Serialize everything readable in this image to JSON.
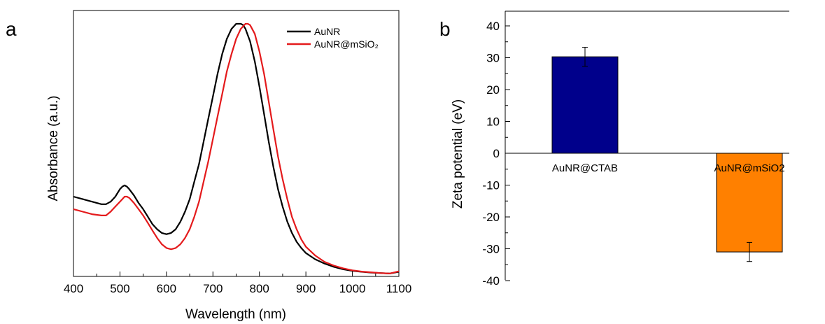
{
  "panels": {
    "a": "a",
    "b": "b"
  },
  "chart_data": [
    {
      "type": "line",
      "xlabel": "Wavelength (nm)",
      "ylabel": "Absorbance (a.u.)",
      "xlim": [
        400,
        1100
      ],
      "ylim": [
        0,
        1.0
      ],
      "xticks": [
        "400",
        "500",
        "600",
        "700",
        "800",
        "900",
        "1000",
        "1100"
      ],
      "legend_position": "top-right",
      "series": [
        {
          "name": "AuNR",
          "color": "#000000",
          "x": [
            400,
            420,
            440,
            460,
            470,
            480,
            490,
            500,
            505,
            510,
            515,
            520,
            530,
            540,
            550,
            560,
            570,
            580,
            590,
            600,
            610,
            620,
            630,
            640,
            650,
            660,
            670,
            680,
            690,
            700,
            710,
            720,
            730,
            740,
            750,
            760,
            765,
            770,
            780,
            790,
            800,
            810,
            820,
            830,
            840,
            850,
            860,
            870,
            880,
            890,
            900,
            920,
            940,
            960,
            980,
            1000,
            1020,
            1040,
            1060,
            1080,
            1100
          ],
          "y": [
            0.31,
            0.3,
            0.29,
            0.28,
            0.28,
            0.29,
            0.31,
            0.34,
            0.35,
            0.355,
            0.35,
            0.34,
            0.315,
            0.285,
            0.26,
            0.23,
            0.2,
            0.18,
            0.165,
            0.16,
            0.165,
            0.18,
            0.21,
            0.25,
            0.3,
            0.37,
            0.44,
            0.53,
            0.62,
            0.71,
            0.8,
            0.88,
            0.94,
            0.98,
            1.0,
            1.0,
            0.995,
            0.98,
            0.93,
            0.85,
            0.75,
            0.64,
            0.53,
            0.43,
            0.34,
            0.27,
            0.21,
            0.165,
            0.13,
            0.105,
            0.085,
            0.06,
            0.043,
            0.03,
            0.02,
            0.014,
            0.01,
            0.007,
            0.005,
            0.003,
            0.01
          ]
        },
        {
          "name": "AuNR@mSiO₂",
          "color": "#e41a1c",
          "x": [
            400,
            420,
            440,
            460,
            470,
            480,
            490,
            500,
            505,
            510,
            515,
            520,
            530,
            540,
            550,
            560,
            570,
            580,
            590,
            600,
            610,
            620,
            630,
            640,
            650,
            660,
            670,
            680,
            690,
            700,
            710,
            720,
            730,
            740,
            750,
            760,
            770,
            775,
            780,
            790,
            800,
            810,
            820,
            830,
            840,
            850,
            860,
            870,
            880,
            890,
            900,
            920,
            940,
            960,
            980,
            1000,
            1020,
            1040,
            1060,
            1080,
            1100
          ],
          "y": [
            0.26,
            0.25,
            0.24,
            0.235,
            0.235,
            0.25,
            0.27,
            0.29,
            0.3,
            0.31,
            0.31,
            0.305,
            0.285,
            0.26,
            0.235,
            0.205,
            0.175,
            0.145,
            0.12,
            0.105,
            0.1,
            0.105,
            0.12,
            0.145,
            0.18,
            0.23,
            0.29,
            0.37,
            0.45,
            0.54,
            0.63,
            0.72,
            0.81,
            0.88,
            0.94,
            0.98,
            1.0,
            1.0,
            0.995,
            0.96,
            0.89,
            0.8,
            0.69,
            0.58,
            0.47,
            0.38,
            0.3,
            0.23,
            0.18,
            0.14,
            0.11,
            0.075,
            0.05,
            0.035,
            0.024,
            0.016,
            0.011,
            0.008,
            0.005,
            0.003,
            0.012
          ]
        }
      ]
    },
    {
      "type": "bar",
      "ylabel": "Zeta potential (eV)",
      "ylim": [
        -40,
        45
      ],
      "yticks": [
        "-40",
        "-30",
        "-20",
        "-10",
        "0",
        "10",
        "20",
        "30",
        "40"
      ],
      "categories": [
        "AuNR@CTAB",
        "AuNR@mSiO2"
      ],
      "values": [
        30.3,
        -31.0
      ],
      "errors": [
        3.0,
        3.0
      ],
      "colors": [
        "#00008b",
        "#ff8000"
      ]
    }
  ]
}
